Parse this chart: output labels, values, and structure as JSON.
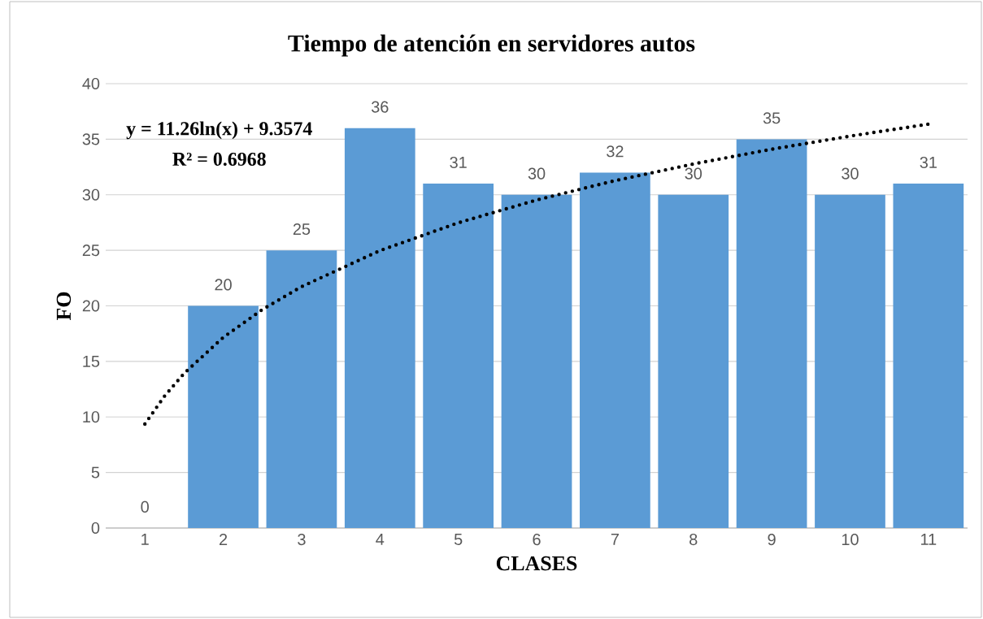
{
  "chart_data": {
    "type": "bar",
    "title": "Tiempo de atención en servidores autos",
    "xlabel": "CLASES",
    "ylabel": "FO",
    "x": [
      1,
      2,
      3,
      4,
      5,
      6,
      7,
      8,
      9,
      10,
      11
    ],
    "xlim": [
      0.5,
      11.5
    ],
    "xticks": [
      1,
      2,
      3,
      4,
      5,
      6,
      7,
      8,
      9,
      10,
      11
    ],
    "ylim": [
      0,
      40
    ],
    "yticks": [
      0,
      5,
      10,
      15,
      20,
      25,
      30,
      35,
      40
    ],
    "grid": "y",
    "series": [
      {
        "color": "#5b9bd5",
        "values": [
          0,
          20,
          25,
          36,
          31,
          30,
          32,
          30,
          35,
          30,
          31
        ],
        "value_labels": [
          "0",
          "20",
          "25",
          "36",
          "31",
          "30",
          "32",
          "30",
          "35",
          "30",
          "31"
        ]
      },
      {
        "type": "line",
        "color": "#000000",
        "line_style": "dotted",
        "marker": "none",
        "x": [
          1,
          1.25,
          1.5,
          2,
          2.5,
          3,
          4,
          5,
          6,
          7,
          8,
          9,
          10,
          11
        ],
        "values": [
          9.36,
          11.87,
          13.92,
          17.16,
          19.67,
          21.73,
          24.97,
          27.48,
          29.53,
          31.27,
          32.77,
          34.1,
          35.28,
          36.36
        ]
      }
    ],
    "annotations": [
      "y = 11.26ln(x) + 9.3574",
      "R² = 0.6968"
    ]
  }
}
